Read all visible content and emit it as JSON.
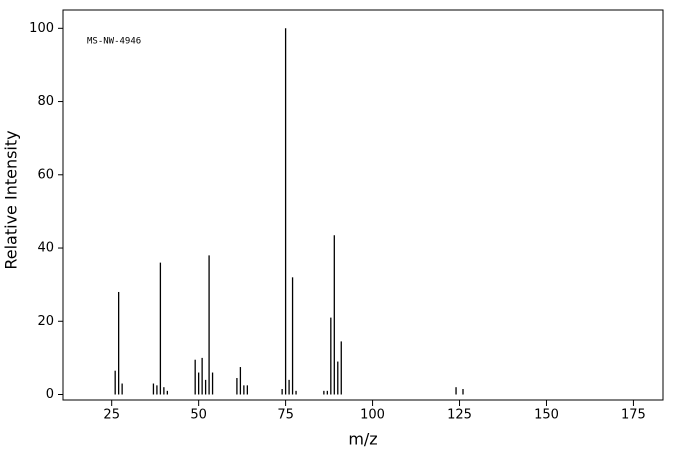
{
  "chart_data": {
    "type": "stem",
    "annotation": "MS-NW-4946",
    "x_label": "m/z",
    "y_label": "Relative Intensity",
    "x": [
      26,
      27,
      28,
      37,
      38,
      39,
      40,
      41,
      49,
      50,
      51,
      52,
      53,
      54,
      61,
      62,
      63,
      64,
      74,
      75,
      76,
      77,
      78,
      86,
      87,
      88,
      89,
      90,
      91,
      124,
      126
    ],
    "values": [
      6.5,
      28,
      3,
      3,
      2.5,
      36,
      2,
      1,
      9.5,
      6,
      10,
      4,
      38,
      6,
      4.5,
      7.5,
      2.5,
      2.5,
      1.5,
      100,
      4,
      32,
      1,
      1,
      1,
      21,
      43.5,
      9,
      14.5,
      2,
      1.5
    ],
    "color": "#000000",
    "xlim": [
      11,
      183.5
    ],
    "ylim": [
      -1.5,
      105
    ],
    "xticks": [
      25,
      50,
      75,
      100,
      125,
      150,
      175
    ],
    "yticks": [
      0,
      20,
      40,
      60,
      80,
      100
    ]
  }
}
